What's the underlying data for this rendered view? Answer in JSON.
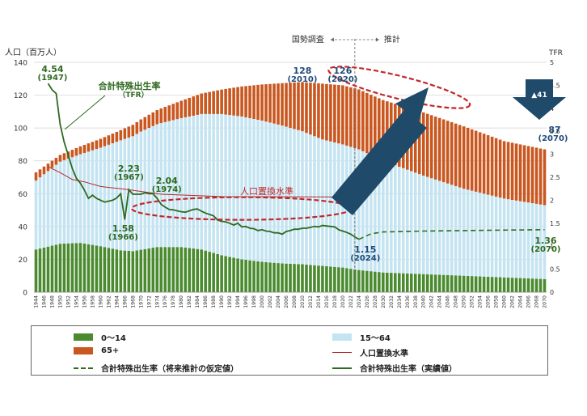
{
  "chart_data": {
    "type": "bar",
    "y_left_label": "人口（百万人）",
    "y_right_label": "TFR",
    "ylim_left": [
      0,
      140
    ],
    "ylim_right": [
      0,
      5
    ],
    "y_left_ticks": [
      "0",
      "20",
      "40",
      "60",
      "80",
      "100",
      "120",
      "140"
    ],
    "y_right_ticks": [
      "0",
      "0.5",
      "1",
      "1.5",
      "2",
      "2.5",
      "3",
      "3.5",
      "4",
      "4.5",
      "5"
    ],
    "years": [
      1944,
      1945,
      1946,
      1947,
      1948,
      1949,
      1950,
      1951,
      1952,
      1953,
      1954,
      1955,
      1956,
      1957,
      1958,
      1959,
      1960,
      1961,
      1962,
      1963,
      1964,
      1965,
      1966,
      1967,
      1968,
      1969,
      1970,
      1971,
      1972,
      1973,
      1974,
      1975,
      1976,
      1977,
      1978,
      1979,
      1980,
      1981,
      1982,
      1983,
      1984,
      1985,
      1986,
      1987,
      1988,
      1989,
      1990,
      1991,
      1992,
      1993,
      1994,
      1995,
      1996,
      1997,
      1998,
      1999,
      2000,
      2001,
      2002,
      2003,
      2004,
      2005,
      2006,
      2007,
      2008,
      2009,
      2010,
      2011,
      2012,
      2013,
      2014,
      2015,
      2016,
      2017,
      2018,
      2019,
      2020,
      2021,
      2022,
      2023,
      2024,
      2025,
      2026,
      2027,
      2028,
      2029,
      2030,
      2031,
      2032,
      2033,
      2034,
      2035,
      2036,
      2037,
      2038,
      2039,
      2040,
      2041,
      2042,
      2043,
      2044,
      2045,
      2046,
      2047,
      2048,
      2049,
      2050,
      2051,
      2052,
      2053,
      2054,
      2055,
      2056,
      2057,
      2058,
      2059,
      2060,
      2061,
      2062,
      2063,
      2064,
      2065,
      2066,
      2067,
      2068,
      2069,
      2070
    ],
    "x_tick_labels": [
      "1944",
      "1946",
      "1948",
      "1950",
      "1952",
      "1954",
      "1956",
      "1958",
      "1960",
      "1962",
      "1964",
      "1966",
      "1968",
      "1970",
      "1972",
      "1974",
      "1976",
      "1978",
      "1980",
      "1982",
      "1984",
      "1986",
      "1988",
      "1990",
      "1992",
      "1994",
      "1996",
      "1998",
      "2000",
      "2002",
      "2004",
      "2006",
      "2008",
      "2010",
      "2012",
      "2014",
      "2016",
      "2018",
      "2020",
      "2022",
      "2024",
      "2026",
      "2028",
      "2030",
      "2032",
      "2034",
      "2036",
      "2038",
      "2040",
      "2042",
      "2044",
      "2046",
      "2048",
      "2050",
      "2052",
      "2054",
      "2056",
      "2058",
      "2060",
      "2062",
      "2064",
      "2066",
      "2068",
      "2070"
    ],
    "series": [
      {
        "name": "0〜14",
        "color": "#4a8b2f",
        "anchors": [
          [
            1944,
            26
          ],
          [
            1950,
            29.5
          ],
          [
            1955,
            30
          ],
          [
            1960,
            28
          ],
          [
            1965,
            25.5
          ],
          [
            1968,
            25
          ],
          [
            1974,
            27.5
          ],
          [
            1980,
            27.5
          ],
          [
            1985,
            26
          ],
          [
            1990,
            22.5
          ],
          [
            1995,
            20
          ],
          [
            2000,
            18.5
          ],
          [
            2005,
            17.5
          ],
          [
            2010,
            17
          ],
          [
            2015,
            16
          ],
          [
            2020,
            15
          ],
          [
            2024,
            13.5
          ],
          [
            2030,
            12
          ],
          [
            2040,
            11
          ],
          [
            2050,
            10
          ],
          [
            2060,
            9
          ],
          [
            2070,
            8
          ]
        ]
      },
      {
        "name": "15〜64",
        "color": "#c5e4f2",
        "anchors": [
          [
            1944,
            42
          ],
          [
            1950,
            50
          ],
          [
            1955,
            54
          ],
          [
            1960,
            60
          ],
          [
            1965,
            67
          ],
          [
            1970,
            72
          ],
          [
            1975,
            75.5
          ],
          [
            1980,
            78.5
          ],
          [
            1985,
            82.5
          ],
          [
            1990,
            86
          ],
          [
            1995,
            87
          ],
          [
            2000,
            86
          ],
          [
            2005,
            84
          ],
          [
            2010,
            81
          ],
          [
            2015,
            77
          ],
          [
            2020,
            75
          ],
          [
            2024,
            73.5
          ],
          [
            2030,
            68
          ],
          [
            2040,
            60
          ],
          [
            2050,
            53
          ],
          [
            2060,
            48
          ],
          [
            2070,
            45
          ]
        ]
      },
      {
        "name": "65+",
        "color": "#c9571f",
        "anchors": [
          [
            1944,
            5
          ],
          [
            1950,
            4.1
          ],
          [
            1955,
            4.8
          ],
          [
            1960,
            5.4
          ],
          [
            1965,
            6.2
          ],
          [
            1970,
            7.4
          ],
          [
            1975,
            8.9
          ],
          [
            1980,
            10.6
          ],
          [
            1985,
            12.5
          ],
          [
            1990,
            14.9
          ],
          [
            1995,
            18.3
          ],
          [
            2000,
            22
          ],
          [
            2005,
            25.8
          ],
          [
            2010,
            30
          ],
          [
            2015,
            34
          ],
          [
            2020,
            36
          ],
          [
            2024,
            36.5
          ],
          [
            2030,
            37
          ],
          [
            2040,
            38.5
          ],
          [
            2050,
            38
          ],
          [
            2060,
            35
          ],
          [
            2070,
            34
          ]
        ]
      }
    ],
    "tfr_actual": {
      "name": "合計特殊出生率（実績値）",
      "color": "#2e6a1f",
      "points": [
        [
          1947,
          4.54
        ],
        [
          1948,
          4.4
        ],
        [
          1949,
          4.32
        ],
        [
          1950,
          3.65
        ],
        [
          1951,
          3.26
        ],
        [
          1952,
          2.98
        ],
        [
          1953,
          2.69
        ],
        [
          1954,
          2.48
        ],
        [
          1955,
          2.37
        ],
        [
          1956,
          2.22
        ],
        [
          1957,
          2.04
        ],
        [
          1958,
          2.11
        ],
        [
          1959,
          2.04
        ],
        [
          1960,
          2.0
        ],
        [
          1961,
          1.96
        ],
        [
          1962,
          1.98
        ],
        [
          1963,
          2.0
        ],
        [
          1964,
          2.05
        ],
        [
          1965,
          2.14
        ],
        [
          1966,
          1.58
        ],
        [
          1967,
          2.23
        ],
        [
          1968,
          2.13
        ],
        [
          1969,
          2.13
        ],
        [
          1970,
          2.13
        ],
        [
          1971,
          2.16
        ],
        [
          1972,
          2.14
        ],
        [
          1973,
          2.14
        ],
        [
          1974,
          2.04
        ],
        [
          1975,
          1.91
        ],
        [
          1976,
          1.85
        ],
        [
          1977,
          1.8
        ],
        [
          1978,
          1.79
        ],
        [
          1979,
          1.77
        ],
        [
          1980,
          1.75
        ],
        [
          1981,
          1.74
        ],
        [
          1982,
          1.77
        ],
        [
          1983,
          1.8
        ],
        [
          1984,
          1.81
        ],
        [
          1985,
          1.76
        ],
        [
          1986,
          1.72
        ],
        [
          1987,
          1.69
        ],
        [
          1988,
          1.66
        ],
        [
          1989,
          1.57
        ],
        [
          1990,
          1.54
        ],
        [
          1991,
          1.53
        ],
        [
          1992,
          1.5
        ],
        [
          1993,
          1.46
        ],
        [
          1994,
          1.5
        ],
        [
          1995,
          1.42
        ],
        [
          1996,
          1.43
        ],
        [
          1997,
          1.39
        ],
        [
          1998,
          1.38
        ],
        [
          1999,
          1.34
        ],
        [
          2000,
          1.36
        ],
        [
          2001,
          1.33
        ],
        [
          2002,
          1.32
        ],
        [
          2003,
          1.29
        ],
        [
          2004,
          1.29
        ],
        [
          2005,
          1.26
        ],
        [
          2006,
          1.32
        ],
        [
          2007,
          1.34
        ],
        [
          2008,
          1.37
        ],
        [
          2009,
          1.37
        ],
        [
          2010,
          1.39
        ],
        [
          2011,
          1.39
        ],
        [
          2012,
          1.41
        ],
        [
          2013,
          1.43
        ],
        [
          2014,
          1.42
        ],
        [
          2015,
          1.45
        ],
        [
          2016,
          1.44
        ],
        [
          2017,
          1.43
        ],
        [
          2018,
          1.42
        ],
        [
          2019,
          1.36
        ],
        [
          2020,
          1.33
        ],
        [
          2021,
          1.3
        ],
        [
          2022,
          1.26
        ],
        [
          2023,
          1.2
        ],
        [
          2024,
          1.15
        ]
      ]
    },
    "tfr_assumed": {
      "name": "合計特殊出生率（将来推計の仮定値）",
      "color": "#2e6a1f",
      "points": [
        [
          2024,
          1.15
        ],
        [
          2027,
          1.27
        ],
        [
          2030,
          1.31
        ],
        [
          2040,
          1.33
        ],
        [
          2050,
          1.34
        ],
        [
          2060,
          1.35
        ],
        [
          2070,
          1.36
        ]
      ]
    },
    "replacement": {
      "name": "人口置換水準",
      "color": "#b22a2a",
      "points": [
        [
          1947,
          2.73
        ],
        [
          1950,
          2.6
        ],
        [
          1953,
          2.45
        ],
        [
          1956,
          2.4
        ],
        [
          1960,
          2.3
        ],
        [
          1966,
          2.24
        ],
        [
          1975,
          2.13
        ],
        [
          1990,
          2.08
        ],
        [
          2024,
          2.07
        ]
      ]
    },
    "labels": {
      "peak_pop_2010": "128",
      "peak_year_2010": "(2010)",
      "pop_2020": "126",
      "year_2020": "(2020)",
      "pop_2070": "87",
      "year_2070": "(2070)",
      "tfr_1947_val": "4.54",
      "tfr_1947_year": "(1947)",
      "tfr_1967_val": "2.23",
      "tfr_1967_year": "(1967)",
      "tfr_1974_val": "2.04",
      "tfr_1974_year": "(1974)",
      "tfr_1966_val": "1.58",
      "tfr_1966_year": "(1966)",
      "tfr_2024_val": "1.15",
      "tfr_2024_year": "(2024)",
      "tfr_2070_val": "1.36",
      "tfr_2070_year": "(2070)",
      "tfr_callout": "合計特殊出生率",
      "tfr_callout_sub": "（TFR）",
      "replacement_label": "人口置換水準",
      "census_label": "国勢調査",
      "projection_label": "推計",
      "decline_badge": "▲41"
    }
  },
  "legend": {
    "age_0_14": "0〜14",
    "age_15_64": "15〜64",
    "age_65_plus": "65+",
    "replacement": "人口置換水準",
    "tfr_assumed": "合計特殊出生率（将来推計の仮定値）",
    "tfr_actual": "合計特殊出生率（実績値）"
  }
}
